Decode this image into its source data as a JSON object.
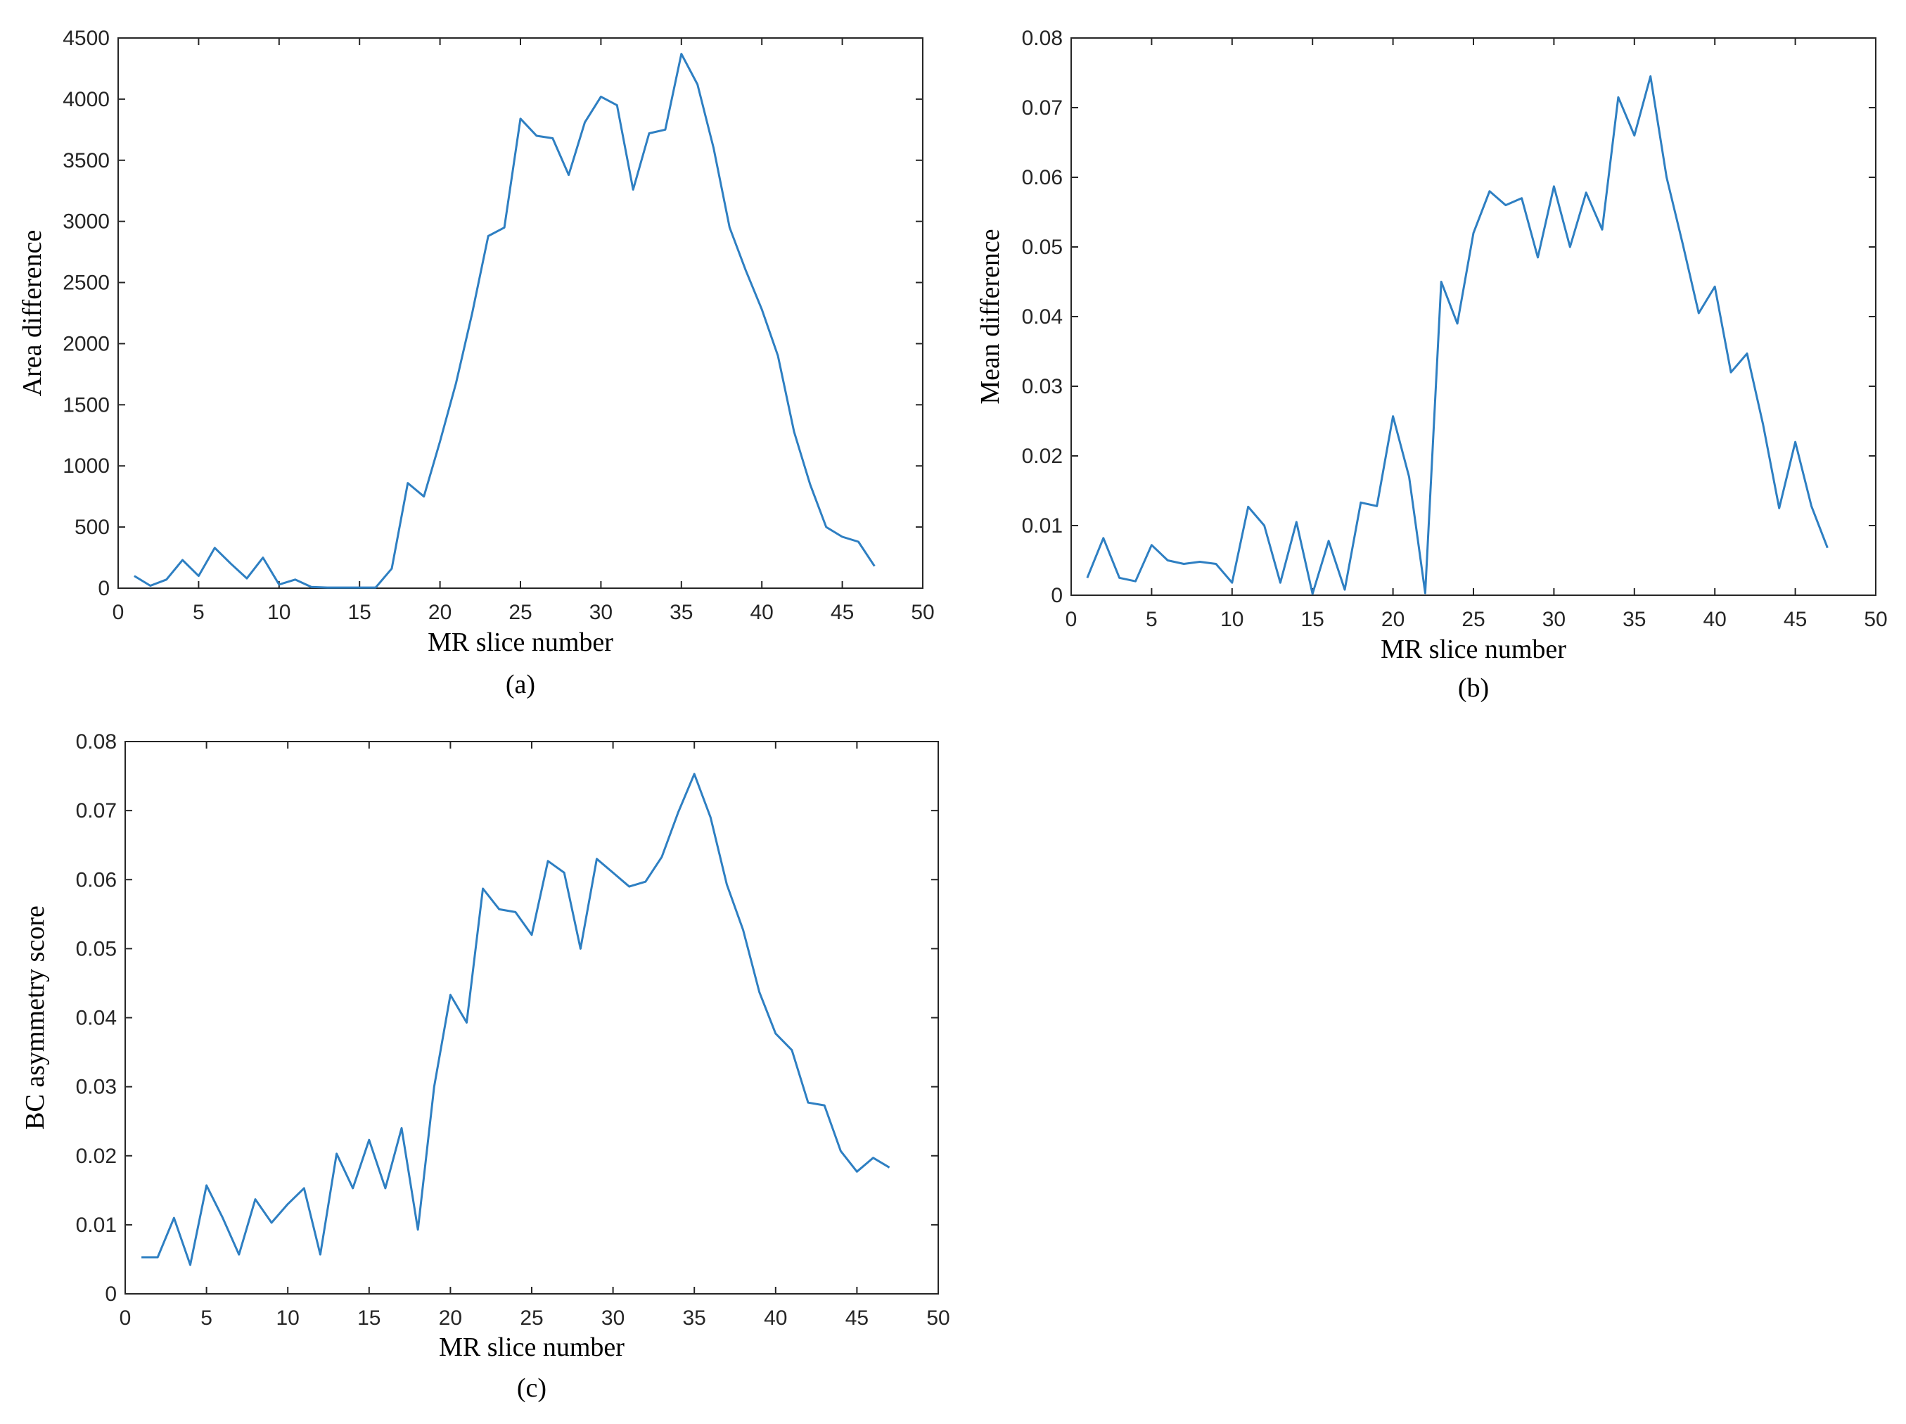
{
  "style": {
    "line_color": "#2E7FC2",
    "axis_color": "#262626"
  },
  "chart_data": [
    {
      "id": "a",
      "type": "line",
      "panel_label": "(a)",
      "xlabel": "MR slice number",
      "ylabel": "Area difference",
      "xlim": [
        0,
        50
      ],
      "ylim": [
        0,
        4500
      ],
      "xticks": [
        "0",
        "5",
        "10",
        "15",
        "20",
        "25",
        "30",
        "35",
        "40",
        "45",
        "50"
      ],
      "xtick_values": [
        0,
        5,
        10,
        15,
        20,
        25,
        30,
        35,
        40,
        45,
        50
      ],
      "yticks": [
        "0",
        "500",
        "1000",
        "1500",
        "2000",
        "2500",
        "3000",
        "3500",
        "4000",
        "4500"
      ],
      "ytick_values": [
        0,
        500,
        1000,
        1500,
        2000,
        2500,
        3000,
        3500,
        4000,
        4500
      ],
      "series": [
        {
          "x": [
            1,
            2,
            3,
            4,
            5,
            6,
            7,
            8,
            9,
            10,
            11,
            12,
            13,
            14,
            15,
            16,
            17,
            18,
            19,
            20,
            21,
            22,
            23,
            24,
            25,
            26,
            27,
            28,
            29,
            30,
            31,
            32,
            33,
            34,
            35,
            36,
            37,
            38,
            39,
            40,
            41,
            42,
            43,
            44,
            45,
            46,
            47
          ],
          "y": [
            100,
            20,
            70,
            230,
            100,
            330,
            200,
            80,
            250,
            30,
            70,
            10,
            5,
            5,
            5,
            5,
            160,
            860,
            750,
            1200,
            1680,
            2250,
            2880,
            2950,
            3840,
            3700,
            3680,
            3380,
            3810,
            4020,
            3950,
            3260,
            3720,
            3750,
            4370,
            4120,
            3600,
            2950,
            2600,
            2280,
            1900,
            1280,
            850,
            500,
            420,
            380,
            180
          ]
        }
      ]
    },
    {
      "id": "b",
      "type": "line",
      "panel_label": "(b)",
      "xlabel": "MR slice number",
      "ylabel": "Mean difference",
      "xlim": [
        0,
        50
      ],
      "ylim": [
        0,
        0.08
      ],
      "xticks": [
        "0",
        "5",
        "10",
        "15",
        "20",
        "25",
        "30",
        "35",
        "40",
        "45",
        "50"
      ],
      "xtick_values": [
        0,
        5,
        10,
        15,
        20,
        25,
        30,
        35,
        40,
        45,
        50
      ],
      "yticks": [
        "0",
        "0.01",
        "0.02",
        "0.03",
        "0.04",
        "0.05",
        "0.06",
        "0.07",
        "0.08"
      ],
      "ytick_values": [
        0,
        0.01,
        0.02,
        0.03,
        0.04,
        0.05,
        0.06,
        0.07,
        0.08
      ],
      "series": [
        {
          "x": [
            1,
            2,
            3,
            4,
            5,
            6,
            7,
            8,
            9,
            10,
            11,
            12,
            13,
            14,
            15,
            16,
            17,
            18,
            19,
            20,
            21,
            22,
            23,
            24,
            25,
            26,
            27,
            28,
            29,
            30,
            31,
            32,
            33,
            34,
            35,
            36,
            37,
            38,
            39,
            40,
            41,
            42,
            43,
            44,
            45,
            46,
            47
          ],
          "y": [
            0.0025,
            0.0082,
            0.0025,
            0.002,
            0.0072,
            0.005,
            0.0045,
            0.0048,
            0.0045,
            0.0018,
            0.0127,
            0.01,
            0.0018,
            0.0105,
            0.0002,
            0.0078,
            0.0008,
            0.0133,
            0.0128,
            0.0257,
            0.017,
            0.0003,
            0.045,
            0.039,
            0.052,
            0.058,
            0.056,
            0.057,
            0.0485,
            0.0587,
            0.05,
            0.0578,
            0.0525,
            0.0715,
            0.066,
            0.0745,
            0.06,
            0.0505,
            0.0405,
            0.0443,
            0.032,
            0.0347,
            0.0245,
            0.0125,
            0.022,
            0.0128,
            0.0068
          ]
        }
      ]
    },
    {
      "id": "c",
      "type": "line",
      "panel_label": "(c)",
      "xlabel": "MR slice number",
      "ylabel": "BC asymmetry score",
      "xlim": [
        0,
        50
      ],
      "ylim": [
        0,
        0.08
      ],
      "xticks": [
        "0",
        "5",
        "10",
        "15",
        "20",
        "25",
        "30",
        "35",
        "40",
        "45",
        "50"
      ],
      "xtick_values": [
        0,
        5,
        10,
        15,
        20,
        25,
        30,
        35,
        40,
        45,
        50
      ],
      "yticks": [
        "0",
        "0.01",
        "0.02",
        "0.03",
        "0.04",
        "0.05",
        "0.06",
        "0.07",
        "0.08"
      ],
      "ytick_values": [
        0,
        0.01,
        0.02,
        0.03,
        0.04,
        0.05,
        0.06,
        0.07,
        0.08
      ],
      "series": [
        {
          "x": [
            1,
            2,
            3,
            4,
            5,
            6,
            7,
            8,
            9,
            10,
            11,
            12,
            13,
            14,
            15,
            16,
            17,
            18,
            19,
            20,
            21,
            22,
            23,
            24,
            25,
            26,
            27,
            28,
            29,
            30,
            31,
            32,
            33,
            34,
            35,
            36,
            37,
            38,
            39,
            40,
            41,
            42,
            43,
            44,
            45,
            46,
            47
          ],
          "y": [
            0.0053,
            0.0053,
            0.011,
            0.0042,
            0.0157,
            0.011,
            0.0057,
            0.0137,
            0.0103,
            0.013,
            0.0153,
            0.0057,
            0.0203,
            0.0153,
            0.0223,
            0.0153,
            0.024,
            0.0093,
            0.03,
            0.0433,
            0.0393,
            0.0587,
            0.0557,
            0.0553,
            0.052,
            0.0627,
            0.061,
            0.05,
            0.063,
            0.061,
            0.059,
            0.0597,
            0.0633,
            0.0697,
            0.0753,
            0.069,
            0.0593,
            0.0527,
            0.0437,
            0.0377,
            0.0353,
            0.0277,
            0.0273,
            0.0207,
            0.0177,
            0.0197,
            0.0183
          ]
        }
      ]
    }
  ]
}
